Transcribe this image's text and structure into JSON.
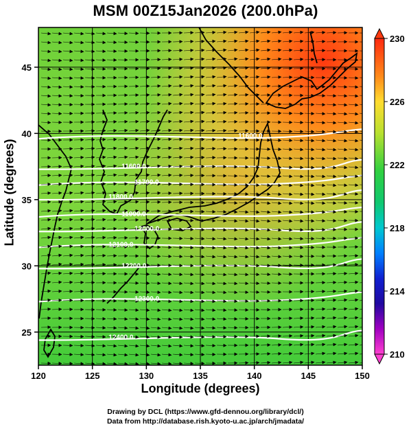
{
  "title": "MSM 00Z15Jan2026 (200.0hPa)",
  "axes": {
    "xlabel": "Longitude (degrees)",
    "ylabel": "Latitude  (degrees)",
    "x_ticks": [
      "120",
      "125",
      "130",
      "135",
      "140",
      "145",
      "150"
    ],
    "y_ticks": [
      "25",
      "30",
      "35",
      "40",
      "45"
    ]
  },
  "colorbar": {
    "min": 210,
    "max": 230,
    "labels": [
      "230",
      "226",
      "222",
      "218",
      "214",
      "210"
    ]
  },
  "contours": [
    {
      "label": "11600.0",
      "lat": 39.8
    },
    {
      "label": "11600.0",
      "lat": 37.5
    },
    {
      "label": "11700.0",
      "lat": 36.3
    },
    {
      "label": "11800.0",
      "lat": 35.2
    },
    {
      "label": "11900.0",
      "lat": 33.9
    },
    {
      "label": "12000.0",
      "lat": 32.8
    },
    {
      "label": "12100.0",
      "lat": 31.6
    },
    {
      "label": "12200.0",
      "lat": 30.0
    },
    {
      "label": "12300.0",
      "lat": 27.5
    },
    {
      "label": "12400.0",
      "lat": 24.6
    }
  ],
  "credits": {
    "line1": "Drawing by DCL (https://www.gfd-dennou.org/library/dcl/)",
    "line2": "Data from http://database.rish.kyoto-u.ac.jp/arch/jmadata/"
  }
}
